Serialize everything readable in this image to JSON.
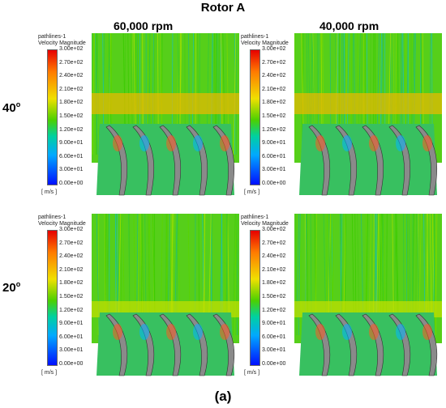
{
  "figure": {
    "title": "Rotor A",
    "columns": [
      "60,000 rpm",
      "40,000 rpm"
    ],
    "rows": [
      {
        "angle": "40",
        "unit": "o"
      },
      {
        "angle": "20",
        "unit": "o"
      }
    ],
    "caption": "(a)"
  },
  "legend": {
    "name": "pathlines-1",
    "quantity": "Velocity Magnitude",
    "ticks": [
      "3.00e+02",
      "2.70e+02",
      "2.40e+02",
      "2.10e+02",
      "1.80e+02",
      "1.50e+02",
      "1.20e+02",
      "9.00e+01",
      "6.00e+01",
      "3.00e+01",
      "0.00e+00"
    ],
    "unit": "[ m/s ]"
  },
  "colors": {
    "high": "#e60000",
    "mid": "#f0e000",
    "low": "#0010ff",
    "flow_main": "#4cd000",
    "blade": "#8a8a8a"
  }
}
